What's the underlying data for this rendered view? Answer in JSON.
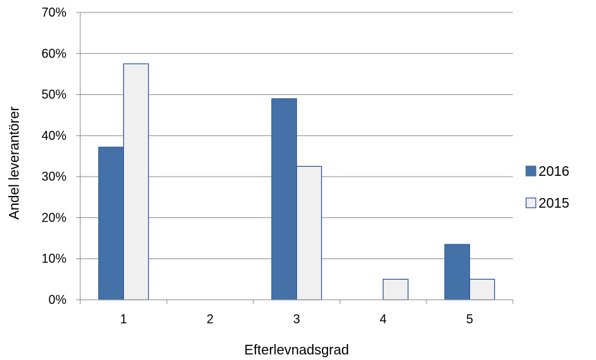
{
  "chart_data": {
    "type": "bar",
    "categories": [
      "1",
      "2",
      "3",
      "4",
      "5"
    ],
    "series": [
      {
        "name": "2016",
        "values": [
          37.2,
          0,
          49.0,
          0,
          13.5
        ],
        "color": "#4472a8",
        "border": "#3a6699"
      },
      {
        "name": "2015",
        "values": [
          57.5,
          0,
          32.5,
          5.0,
          5.0
        ],
        "color": "#f0f0f0",
        "border": "#2f5597"
      }
    ],
    "title": "",
    "xlabel": "Efterlevnadsgrad",
    "ylabel": "Andel leverantörer",
    "ylim": [
      0,
      70
    ],
    "yticks": [
      0,
      10,
      20,
      30,
      40,
      50,
      60,
      70
    ],
    "ytick_suffix": "%",
    "grid": true,
    "legend": "right"
  }
}
